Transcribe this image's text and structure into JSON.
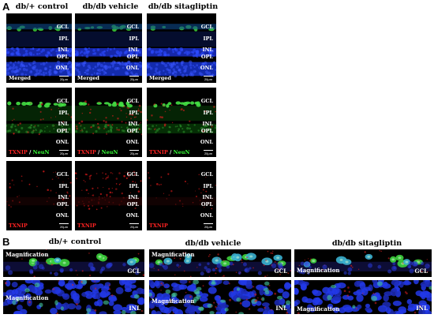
{
  "panel_a": {
    "letter": "A",
    "columns": [
      "db/+ control",
      "db/db vehicle",
      "db/db sitagliptin"
    ],
    "layers": [
      "GCL",
      "IPL",
      "INL",
      "OPL",
      "ONL"
    ],
    "rows": [
      {
        "stain_label": "Merged",
        "stain_parts": [
          "Merged"
        ]
      },
      {
        "stain_label": "TXNIP / NeuN",
        "stain_parts": [
          "TXNIP",
          " / ",
          "NeuN"
        ]
      },
      {
        "stain_label": "TXNIP",
        "stain_parts": [
          "TXNIP"
        ]
      }
    ],
    "scale_bar": "20μm"
  },
  "panel_b": {
    "letter": "B",
    "columns": [
      "db/+ control",
      "db/db vehicle",
      "db/db sitagliptin"
    ],
    "magnification_label": "Magnification",
    "row_tags": [
      "GCL",
      "INL"
    ]
  },
  "colors": {
    "nuclei_blue": "#1a35e0",
    "neun_green": "#3cd23c",
    "txnip_red": "#e02020",
    "background": "#000000"
  }
}
